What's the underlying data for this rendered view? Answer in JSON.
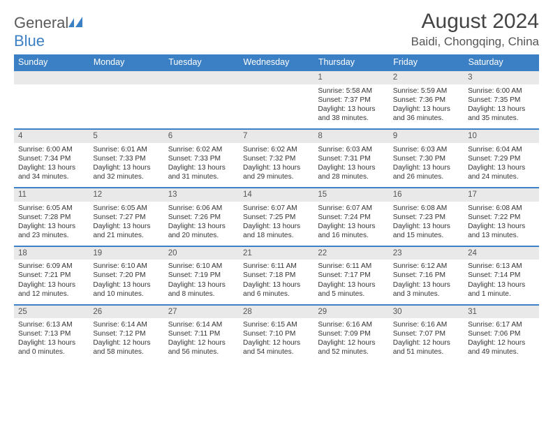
{
  "brand": {
    "part1": "General",
    "part2": "Blue"
  },
  "title": {
    "month": "August 2024",
    "location": "Baidi, Chongqing, China"
  },
  "colors": {
    "accent": "#3b7fc4",
    "header_text": "#ffffff",
    "daynum_bg": "#e9e9e9",
    "text": "#333333",
    "muted": "#555555"
  },
  "day_headers": [
    "Sunday",
    "Monday",
    "Tuesday",
    "Wednesday",
    "Thursday",
    "Friday",
    "Saturday"
  ],
  "weeks": [
    [
      null,
      null,
      null,
      null,
      {
        "n": "1",
        "sr": "Sunrise: 5:58 AM",
        "ss": "Sunset: 7:37 PM",
        "dl": "Daylight: 13 hours and 38 minutes."
      },
      {
        "n": "2",
        "sr": "Sunrise: 5:59 AM",
        "ss": "Sunset: 7:36 PM",
        "dl": "Daylight: 13 hours and 36 minutes."
      },
      {
        "n": "3",
        "sr": "Sunrise: 6:00 AM",
        "ss": "Sunset: 7:35 PM",
        "dl": "Daylight: 13 hours and 35 minutes."
      }
    ],
    [
      {
        "n": "4",
        "sr": "Sunrise: 6:00 AM",
        "ss": "Sunset: 7:34 PM",
        "dl": "Daylight: 13 hours and 34 minutes."
      },
      {
        "n": "5",
        "sr": "Sunrise: 6:01 AM",
        "ss": "Sunset: 7:33 PM",
        "dl": "Daylight: 13 hours and 32 minutes."
      },
      {
        "n": "6",
        "sr": "Sunrise: 6:02 AM",
        "ss": "Sunset: 7:33 PM",
        "dl": "Daylight: 13 hours and 31 minutes."
      },
      {
        "n": "7",
        "sr": "Sunrise: 6:02 AM",
        "ss": "Sunset: 7:32 PM",
        "dl": "Daylight: 13 hours and 29 minutes."
      },
      {
        "n": "8",
        "sr": "Sunrise: 6:03 AM",
        "ss": "Sunset: 7:31 PM",
        "dl": "Daylight: 13 hours and 28 minutes."
      },
      {
        "n": "9",
        "sr": "Sunrise: 6:03 AM",
        "ss": "Sunset: 7:30 PM",
        "dl": "Daylight: 13 hours and 26 minutes."
      },
      {
        "n": "10",
        "sr": "Sunrise: 6:04 AM",
        "ss": "Sunset: 7:29 PM",
        "dl": "Daylight: 13 hours and 24 minutes."
      }
    ],
    [
      {
        "n": "11",
        "sr": "Sunrise: 6:05 AM",
        "ss": "Sunset: 7:28 PM",
        "dl": "Daylight: 13 hours and 23 minutes."
      },
      {
        "n": "12",
        "sr": "Sunrise: 6:05 AM",
        "ss": "Sunset: 7:27 PM",
        "dl": "Daylight: 13 hours and 21 minutes."
      },
      {
        "n": "13",
        "sr": "Sunrise: 6:06 AM",
        "ss": "Sunset: 7:26 PM",
        "dl": "Daylight: 13 hours and 20 minutes."
      },
      {
        "n": "14",
        "sr": "Sunrise: 6:07 AM",
        "ss": "Sunset: 7:25 PM",
        "dl": "Daylight: 13 hours and 18 minutes."
      },
      {
        "n": "15",
        "sr": "Sunrise: 6:07 AM",
        "ss": "Sunset: 7:24 PM",
        "dl": "Daylight: 13 hours and 16 minutes."
      },
      {
        "n": "16",
        "sr": "Sunrise: 6:08 AM",
        "ss": "Sunset: 7:23 PM",
        "dl": "Daylight: 13 hours and 15 minutes."
      },
      {
        "n": "17",
        "sr": "Sunrise: 6:08 AM",
        "ss": "Sunset: 7:22 PM",
        "dl": "Daylight: 13 hours and 13 minutes."
      }
    ],
    [
      {
        "n": "18",
        "sr": "Sunrise: 6:09 AM",
        "ss": "Sunset: 7:21 PM",
        "dl": "Daylight: 13 hours and 12 minutes."
      },
      {
        "n": "19",
        "sr": "Sunrise: 6:10 AM",
        "ss": "Sunset: 7:20 PM",
        "dl": "Daylight: 13 hours and 10 minutes."
      },
      {
        "n": "20",
        "sr": "Sunrise: 6:10 AM",
        "ss": "Sunset: 7:19 PM",
        "dl": "Daylight: 13 hours and 8 minutes."
      },
      {
        "n": "21",
        "sr": "Sunrise: 6:11 AM",
        "ss": "Sunset: 7:18 PM",
        "dl": "Daylight: 13 hours and 6 minutes."
      },
      {
        "n": "22",
        "sr": "Sunrise: 6:11 AM",
        "ss": "Sunset: 7:17 PM",
        "dl": "Daylight: 13 hours and 5 minutes."
      },
      {
        "n": "23",
        "sr": "Sunrise: 6:12 AM",
        "ss": "Sunset: 7:16 PM",
        "dl": "Daylight: 13 hours and 3 minutes."
      },
      {
        "n": "24",
        "sr": "Sunrise: 6:13 AM",
        "ss": "Sunset: 7:14 PM",
        "dl": "Daylight: 13 hours and 1 minute."
      }
    ],
    [
      {
        "n": "25",
        "sr": "Sunrise: 6:13 AM",
        "ss": "Sunset: 7:13 PM",
        "dl": "Daylight: 13 hours and 0 minutes."
      },
      {
        "n": "26",
        "sr": "Sunrise: 6:14 AM",
        "ss": "Sunset: 7:12 PM",
        "dl": "Daylight: 12 hours and 58 minutes."
      },
      {
        "n": "27",
        "sr": "Sunrise: 6:14 AM",
        "ss": "Sunset: 7:11 PM",
        "dl": "Daylight: 12 hours and 56 minutes."
      },
      {
        "n": "28",
        "sr": "Sunrise: 6:15 AM",
        "ss": "Sunset: 7:10 PM",
        "dl": "Daylight: 12 hours and 54 minutes."
      },
      {
        "n": "29",
        "sr": "Sunrise: 6:16 AM",
        "ss": "Sunset: 7:09 PM",
        "dl": "Daylight: 12 hours and 52 minutes."
      },
      {
        "n": "30",
        "sr": "Sunrise: 6:16 AM",
        "ss": "Sunset: 7:07 PM",
        "dl": "Daylight: 12 hours and 51 minutes."
      },
      {
        "n": "31",
        "sr": "Sunrise: 6:17 AM",
        "ss": "Sunset: 7:06 PM",
        "dl": "Daylight: 12 hours and 49 minutes."
      }
    ]
  ]
}
